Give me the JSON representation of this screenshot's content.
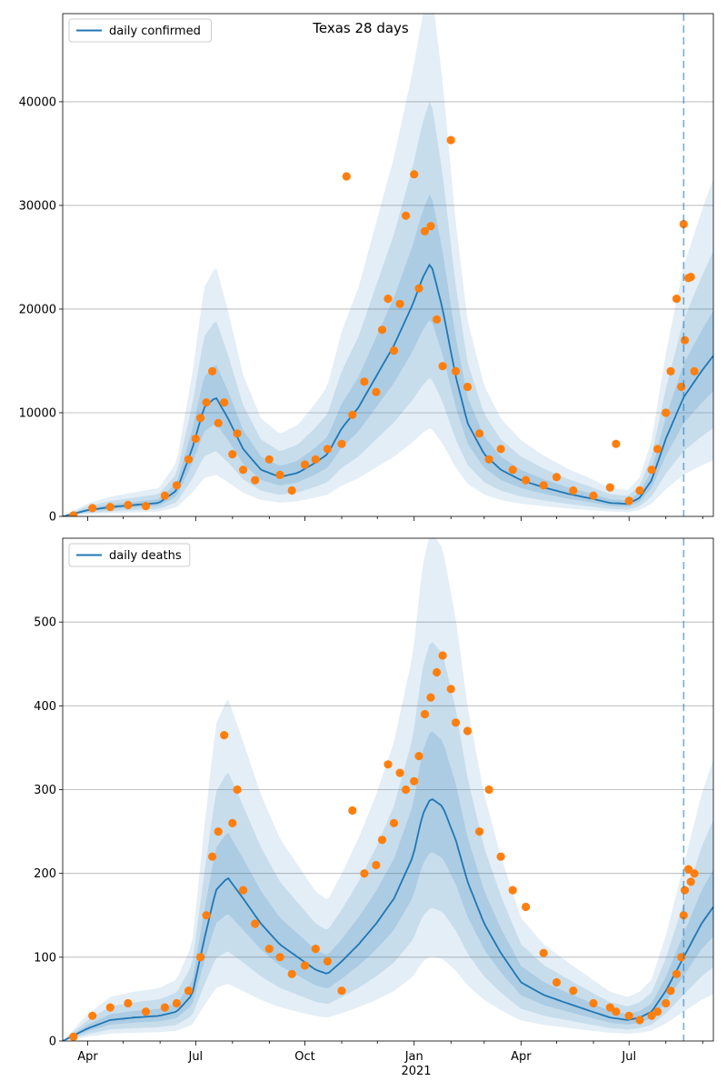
{
  "colors": {
    "line": "#1f77b4",
    "points": "#ff7f0e",
    "band": "#1f77b4",
    "grid": "#b0b0b0",
    "axis": "#000000"
  },
  "chart_data": [
    {
      "type": "line",
      "title": "Texas 28 days",
      "legend": {
        "label": "daily confirmed",
        "placement": "top-left"
      },
      "grid": "horizontal",
      "x_range": [
        "2020-03-11",
        "2021-09-10"
      ],
      "ylim": [
        0,
        48500
      ],
      "yticks": [
        0,
        10000,
        20000,
        30000,
        40000
      ],
      "vline_date": "2021-08-16",
      "series": [
        {
          "name": "daily confirmed",
          "kind": "smoothed-line-with-bands",
          "dates": [
            "2020-03-11",
            "2020-04-01",
            "2020-04-20",
            "2020-05-10",
            "2020-05-31",
            "2020-06-15",
            "2020-06-28",
            "2020-07-08",
            "2020-07-18",
            "2020-07-28",
            "2020-08-10",
            "2020-08-25",
            "2020-09-10",
            "2020-09-25",
            "2020-10-10",
            "2020-10-20",
            "2020-11-01",
            "2020-11-15",
            "2020-11-30",
            "2020-12-15",
            "2020-12-31",
            "2021-01-08",
            "2021-01-15",
            "2021-01-25",
            "2021-02-05",
            "2021-02-15",
            "2021-03-01",
            "2021-03-15",
            "2021-04-01",
            "2021-04-20",
            "2021-05-10",
            "2021-05-31",
            "2021-06-15",
            "2021-06-30",
            "2021-07-10",
            "2021-07-20",
            "2021-08-01",
            "2021-08-16",
            "2021-08-31",
            "2021-09-10"
          ],
          "values": [
            0,
            600,
            900,
            1100,
            1300,
            2500,
            6500,
            10500,
            11500,
            9500,
            6500,
            4500,
            3800,
            4200,
            5200,
            6000,
            8500,
            10500,
            13500,
            16500,
            20500,
            23000,
            24500,
            20000,
            13500,
            9000,
            6000,
            4500,
            3500,
            2800,
            2200,
            1700,
            1300,
            1200,
            1800,
            3500,
            7500,
            11500,
            14000,
            15500
          ]
        },
        {
          "name": "",
          "kind": "scatter",
          "dates": [
            "2020-03-20",
            "2020-04-05",
            "2020-04-20",
            "2020-05-05",
            "2020-05-20",
            "2020-06-05",
            "2020-06-15",
            "2020-06-25",
            "2020-07-01",
            "2020-07-05",
            "2020-07-10",
            "2020-07-15",
            "2020-07-20",
            "2020-07-25",
            "2020-08-01",
            "2020-08-05",
            "2020-08-10",
            "2020-08-20",
            "2020-09-01",
            "2020-09-10",
            "2020-09-20",
            "2020-10-01",
            "2020-10-10",
            "2020-10-20",
            "2020-11-01",
            "2020-11-05",
            "2020-11-10",
            "2020-11-20",
            "2020-11-30",
            "2020-12-05",
            "2020-12-10",
            "2020-12-15",
            "2020-12-20",
            "2020-12-25",
            "2021-01-01",
            "2021-01-05",
            "2021-01-10",
            "2021-01-15",
            "2021-01-20",
            "2021-01-25",
            "2021-02-01",
            "2021-02-05",
            "2021-02-15",
            "2021-02-25",
            "2021-03-05",
            "2021-03-15",
            "2021-03-25",
            "2021-04-05",
            "2021-04-20",
            "2021-05-01",
            "2021-05-15",
            "2021-06-01",
            "2021-06-15",
            "2021-06-20",
            "2021-07-01",
            "2021-07-10",
            "2021-07-20",
            "2021-07-25",
            "2021-08-01",
            "2021-08-05",
            "2021-08-10",
            "2021-08-14",
            "2021-08-16",
            "2021-08-17",
            "2021-08-20",
            "2021-08-22",
            "2021-08-25"
          ],
          "values": [
            100,
            800,
            900,
            1100,
            1000,
            2000,
            3000,
            5500,
            7500,
            9500,
            11000,
            14000,
            9000,
            11000,
            6000,
            8000,
            4500,
            3500,
            5500,
            4000,
            2500,
            5000,
            5500,
            6500,
            7000,
            32800,
            9800,
            13000,
            12000,
            18000,
            21000,
            16000,
            20500,
            29000,
            33000,
            22000,
            27500,
            28000,
            19000,
            14500,
            36300,
            14000,
            12500,
            8000,
            5500,
            6500,
            4500,
            3500,
            3000,
            3800,
            2500,
            2000,
            2800,
            7000,
            1500,
            2500,
            4500,
            6500,
            10000,
            14000,
            21000,
            12500,
            28200,
            17000,
            23000,
            23100,
            14000
          ]
        }
      ]
    },
    {
      "type": "line",
      "title": "",
      "legend": {
        "label": "daily deaths",
        "placement": "top-left"
      },
      "grid": "horizontal",
      "x_range": [
        "2020-03-11",
        "2021-09-10"
      ],
      "ylim": [
        0,
        600
      ],
      "yticks": [
        0,
        100,
        200,
        300,
        400,
        500
      ],
      "x_tick_labels": [
        "Apr",
        "Jul",
        "Oct",
        "Jan",
        "Apr",
        "Jul"
      ],
      "x_tick_dates": [
        "2020-04-01",
        "2020-07-01",
        "2020-10-01",
        "2021-01-01",
        "2021-04-01",
        "2021-07-01"
      ],
      "year_label": "2021",
      "vline_date": "2021-08-16",
      "series": [
        {
          "name": "daily deaths",
          "kind": "smoothed-line-with-bands",
          "dates": [
            "2020-03-11",
            "2020-04-01",
            "2020-04-20",
            "2020-05-10",
            "2020-05-31",
            "2020-06-15",
            "2020-06-28",
            "2020-07-08",
            "2020-07-18",
            "2020-07-28",
            "2020-08-10",
            "2020-08-25",
            "2020-09-10",
            "2020-09-25",
            "2020-10-10",
            "2020-10-20",
            "2020-11-01",
            "2020-11-15",
            "2020-11-30",
            "2020-12-15",
            "2020-12-31",
            "2021-01-08",
            "2021-01-15",
            "2021-01-25",
            "2021-02-05",
            "2021-02-15",
            "2021-03-01",
            "2021-03-15",
            "2021-04-01",
            "2021-04-20",
            "2021-05-10",
            "2021-05-31",
            "2021-06-15",
            "2021-06-30",
            "2021-07-10",
            "2021-07-20",
            "2021-08-01",
            "2021-08-16",
            "2021-08-31",
            "2021-09-10"
          ],
          "values": [
            0,
            15,
            25,
            28,
            30,
            35,
            55,
            120,
            180,
            195,
            170,
            140,
            115,
            100,
            85,
            80,
            95,
            115,
            140,
            170,
            220,
            270,
            290,
            280,
            240,
            190,
            140,
            105,
            70,
            55,
            45,
            35,
            28,
            25,
            28,
            35,
            60,
            100,
            140,
            160
          ]
        },
        {
          "name": "",
          "kind": "scatter",
          "dates": [
            "2020-03-20",
            "2020-04-05",
            "2020-04-20",
            "2020-05-05",
            "2020-05-20",
            "2020-06-05",
            "2020-06-15",
            "2020-06-25",
            "2020-07-05",
            "2020-07-10",
            "2020-07-15",
            "2020-07-20",
            "2020-07-25",
            "2020-08-01",
            "2020-08-05",
            "2020-08-10",
            "2020-08-20",
            "2020-09-01",
            "2020-09-10",
            "2020-09-20",
            "2020-10-01",
            "2020-10-10",
            "2020-10-20",
            "2020-11-01",
            "2020-11-10",
            "2020-11-20",
            "2020-11-30",
            "2020-12-05",
            "2020-12-10",
            "2020-12-15",
            "2020-12-20",
            "2020-12-25",
            "2021-01-01",
            "2021-01-05",
            "2021-01-10",
            "2021-01-15",
            "2021-01-20",
            "2021-01-25",
            "2021-02-01",
            "2021-02-05",
            "2021-02-15",
            "2021-02-25",
            "2021-03-05",
            "2021-03-15",
            "2021-03-25",
            "2021-04-05",
            "2021-04-20",
            "2021-05-01",
            "2021-05-15",
            "2021-06-01",
            "2021-06-15",
            "2021-06-20",
            "2021-07-01",
            "2021-07-10",
            "2021-07-20",
            "2021-07-25",
            "2021-08-01",
            "2021-08-05",
            "2021-08-10",
            "2021-08-14",
            "2021-08-16",
            "2021-08-17",
            "2021-08-20",
            "2021-08-22",
            "2021-08-25"
          ],
          "values": [
            5,
            30,
            40,
            45,
            35,
            40,
            45,
            60,
            100,
            150,
            220,
            250,
            365,
            260,
            300,
            180,
            140,
            110,
            100,
            80,
            90,
            110,
            95,
            60,
            275,
            200,
            210,
            240,
            330,
            260,
            320,
            300,
            310,
            340,
            390,
            410,
            440,
            460,
            420,
            380,
            370,
            250,
            300,
            220,
            180,
            160,
            105,
            70,
            60,
            45,
            40,
            35,
            30,
            25,
            30,
            35,
            45,
            60,
            80,
            100,
            150,
            180,
            205,
            190,
            200
          ]
        }
      ]
    }
  ]
}
